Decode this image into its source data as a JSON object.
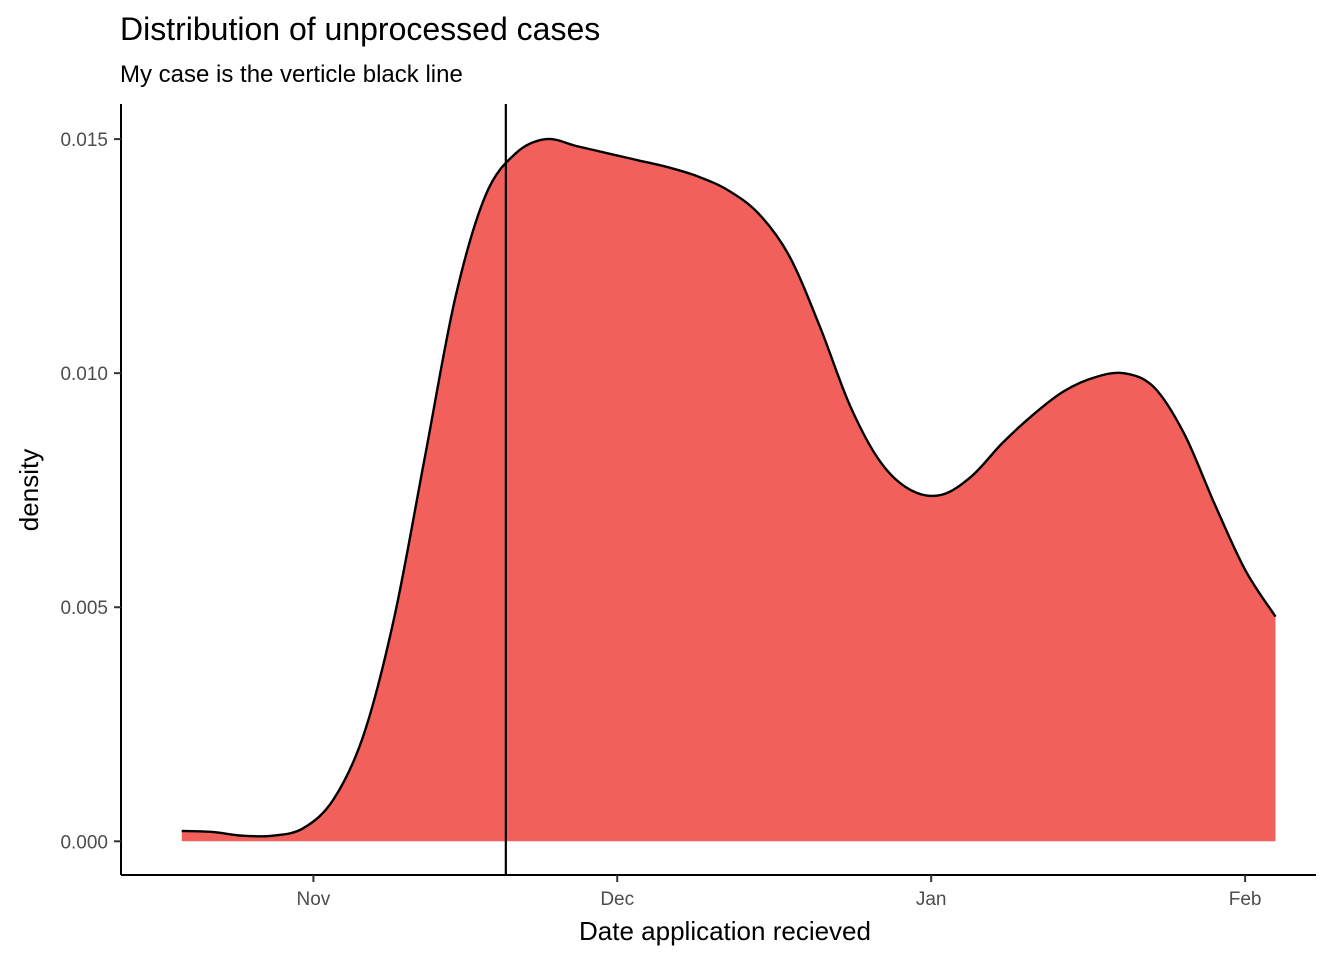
{
  "chart_data": {
    "type": "area",
    "title": "Distribution of unprocessed cases",
    "subtitle": "My case is the verticle black line",
    "xlabel": "Date application recieved",
    "ylabel": "density",
    "x_ticks": [
      "Nov",
      "Dec",
      "Jan",
      "Feb"
    ],
    "x_tick_dates": [
      "2019-11-01",
      "2019-12-01",
      "2020-01-01",
      "2020-02-01"
    ],
    "y_ticks": [
      "0.000",
      "0.005",
      "0.010",
      "0.015"
    ],
    "y_tick_values": [
      0,
      0.005,
      0.01,
      0.015
    ],
    "xlim": [
      "2019-10-13",
      "2020-02-08"
    ],
    "ylim": [
      -0.00072,
      0.01575
    ],
    "grid": false,
    "legend": "none",
    "fill_color": "#F2605C",
    "line_color": "#000000",
    "marker_date": "2019-11-20",
    "series": [
      {
        "x": [
          "2019-10-19",
          "2019-10-22",
          "2019-10-25",
          "2019-10-28",
          "2019-10-31",
          "2019-11-03",
          "2019-11-06",
          "2019-11-09",
          "2019-11-12",
          "2019-11-15",
          "2019-11-18",
          "2019-11-21",
          "2019-11-24",
          "2019-11-27",
          "2019-11-30",
          "2019-12-03",
          "2019-12-06",
          "2019-12-09",
          "2019-12-12",
          "2019-12-15",
          "2019-12-18",
          "2019-12-21",
          "2019-12-24",
          "2019-12-27",
          "2019-12-30",
          "2020-01-02",
          "2020-01-05",
          "2020-01-08",
          "2020-01-11",
          "2020-01-14",
          "2020-01-17",
          "2020-01-20",
          "2020-01-23",
          "2020-01-26",
          "2020-01-29",
          "2020-02-01",
          "2020-02-04"
        ],
        "values": [
          0.00022,
          0.0002,
          0.00012,
          0.00012,
          0.00028,
          0.0009,
          0.0023,
          0.0048,
          0.0082,
          0.0116,
          0.0138,
          0.0147,
          0.015,
          0.01485,
          0.0147,
          0.01455,
          0.0144,
          0.0142,
          0.0139,
          0.0134,
          0.0125,
          0.011,
          0.0093,
          0.0081,
          0.0075,
          0.0074,
          0.0078,
          0.0085,
          0.0091,
          0.0096,
          0.0099,
          0.01,
          0.0097,
          0.0087,
          0.0072,
          0.0058,
          0.0048
        ]
      }
    ]
  }
}
